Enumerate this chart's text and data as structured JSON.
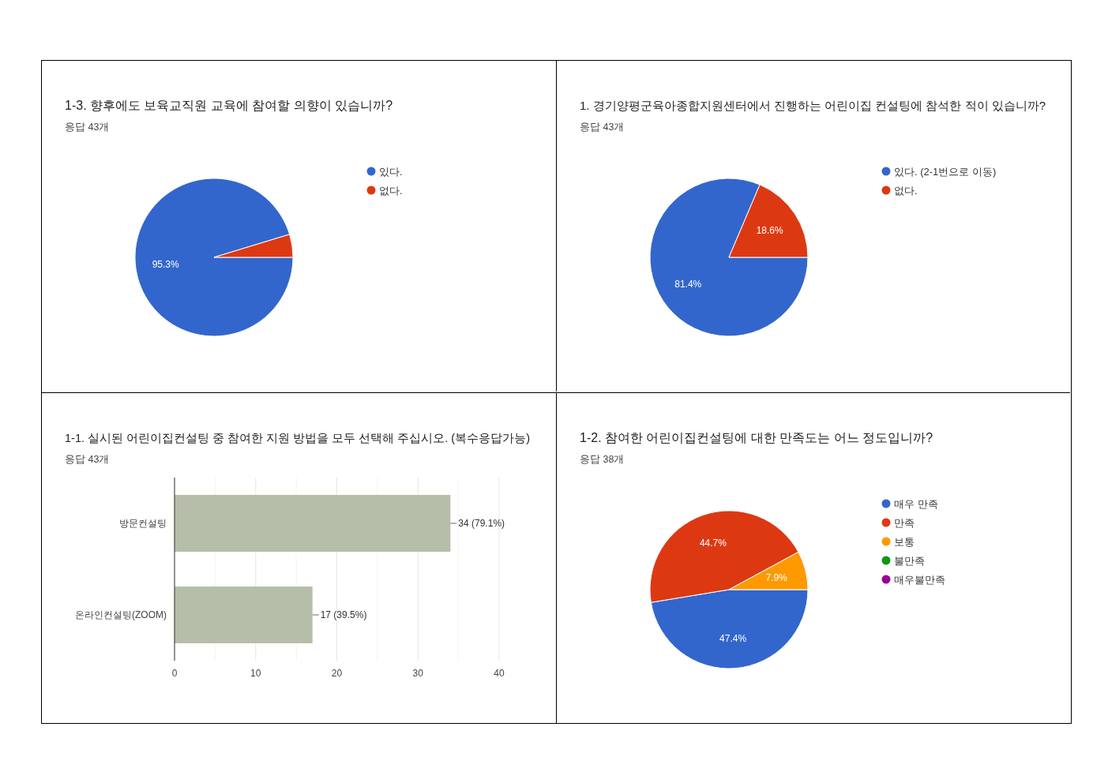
{
  "chart_data": [
    {
      "type": "pie",
      "title": "1-3. 향후에도 보육교직원 교육에 참여할 의향이 있습니까?",
      "subtitle": "응답 43개",
      "categories": [
        "있다.",
        "없다."
      ],
      "values": [
        95.3,
        4.7
      ],
      "colors": [
        "#3366cc",
        "#dc3912"
      ],
      "value_labels": [
        "95.3%",
        null
      ],
      "legend": "right"
    },
    {
      "type": "pie",
      "title": "1. 경기양평군육아종합지원센터에서 진행하는 어린이집 컨설팅에 참석한 적이 있습니까?",
      "subtitle": "응답 43개",
      "categories": [
        "있다. (2-1번으로 이동)",
        "없다."
      ],
      "values": [
        81.4,
        18.6
      ],
      "colors": [
        "#3366cc",
        "#dc3912"
      ],
      "value_labels": [
        "81.4%",
        "18.6%"
      ],
      "legend": "right"
    },
    {
      "type": "bar",
      "orientation": "horizontal",
      "title": "1-1. 실시된 어린이집컨설팅 중 참여한 지원 방법을 모두 선택해 주십시오. (복수응답가능)",
      "subtitle": "응답 43개",
      "categories": [
        "방문컨설팅",
        "온라인컨설팅(ZOOM)"
      ],
      "series": [
        {
          "color": "#b6bea9",
          "values": [
            34,
            17
          ],
          "value_labels": [
            "34 (79.1%)",
            "17 (39.5%)"
          ]
        }
      ],
      "xlim": [
        0,
        40
      ],
      "xticks": [
        0,
        {
          "value": 5,
          "label": null
        },
        10,
        {
          "value": 15,
          "label": null
        },
        20,
        {
          "value": 25,
          "label": null
        },
        30,
        {
          "value": 35,
          "label": null
        },
        40
      ],
      "grid": "x"
    },
    {
      "type": "pie",
      "title": "1-2. 참여한 어린이집컨설팅에 대한 만족도는 어느 정도입니까?",
      "subtitle": "응답 38개",
      "categories": [
        "매우 만족",
        "만족",
        "보통",
        "불만족",
        "매우불만족"
      ],
      "values": [
        47.4,
        44.7,
        7.9,
        0,
        0
      ],
      "colors": [
        "#3366cc",
        "#dc3912",
        "#ff9900",
        "#109618",
        "#990099"
      ],
      "value_labels": [
        "47.4%",
        "44.7%",
        "7.9%",
        null,
        null
      ],
      "legend": "right"
    }
  ]
}
